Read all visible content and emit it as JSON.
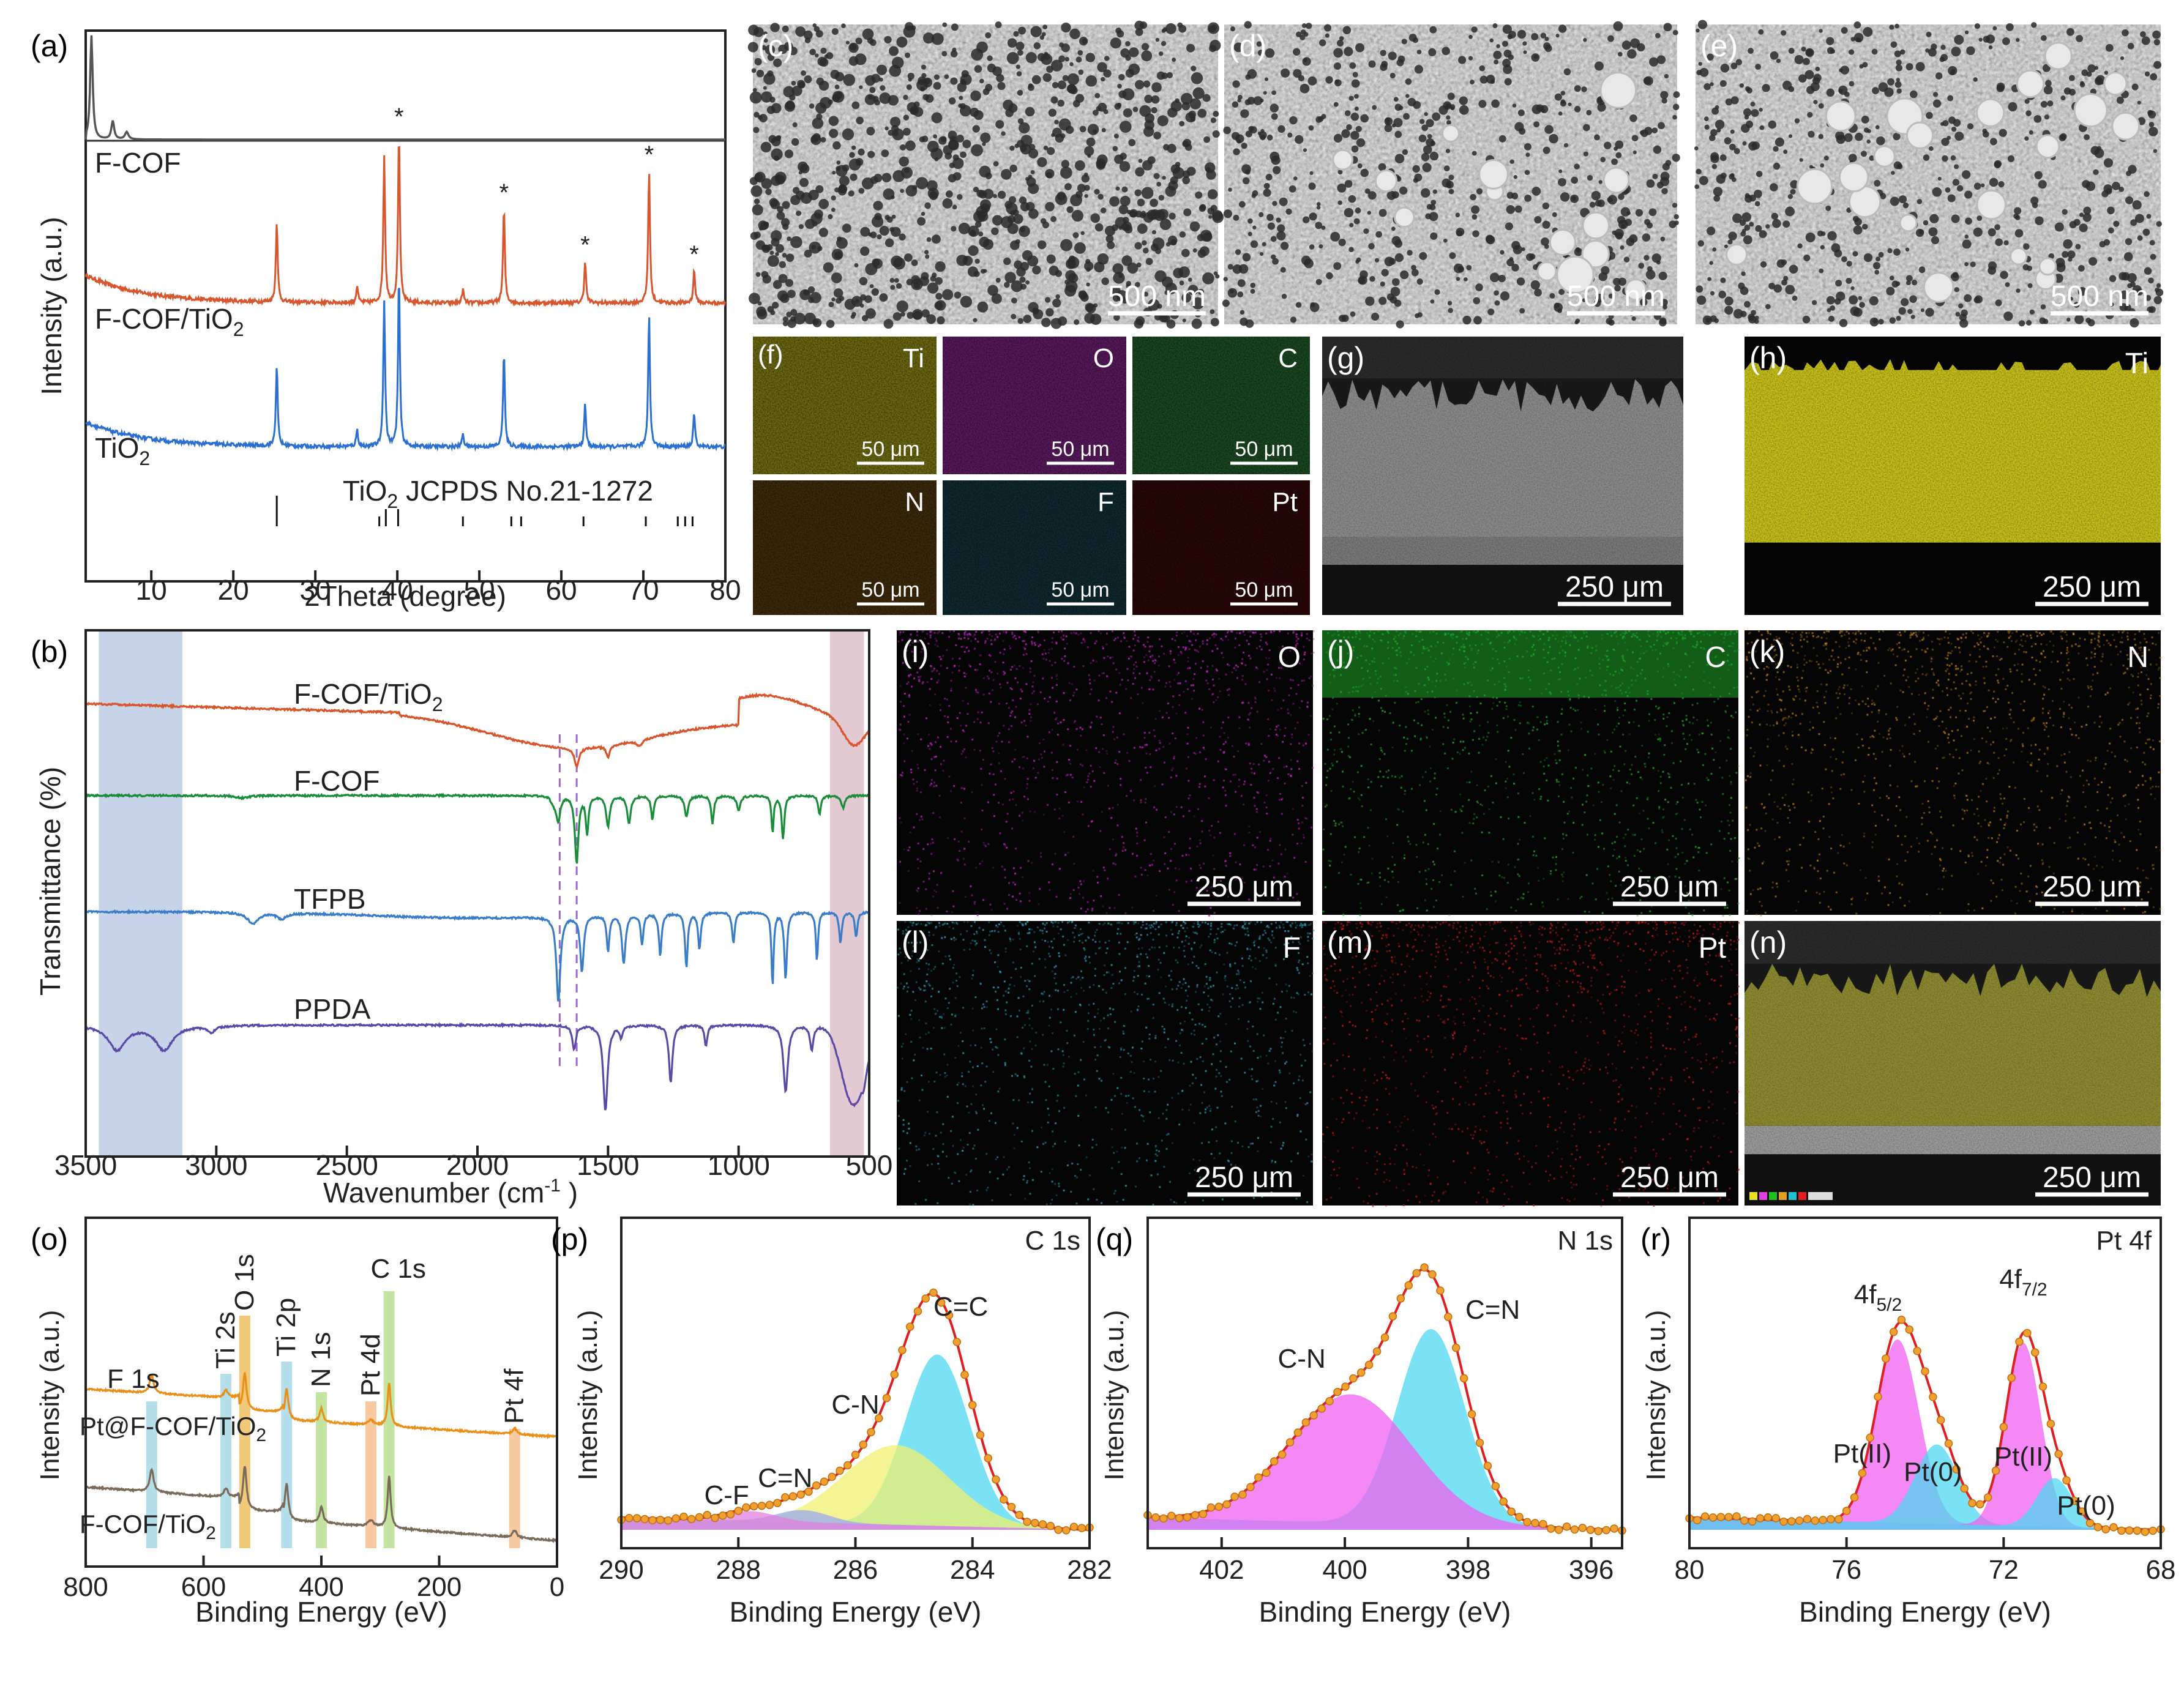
{
  "panel_labels": {
    "a": "(a)",
    "b": "(b)",
    "c": "(c)",
    "d": "(d)",
    "e": "(e)",
    "f": "(f)",
    "g": "(g)",
    "h": "(h)",
    "i": "(i)",
    "j": "(j)",
    "k": "(k)",
    "l": "(l)",
    "m": "(m)",
    "n": "(n)",
    "o": "(o)",
    "p": "(p)",
    "q": "(q)",
    "r": "(r)"
  },
  "micrographs": [
    {
      "panel": "c",
      "type": "SEM top view",
      "scale_bar": "500 nm"
    },
    {
      "panel": "d",
      "type": "SEM top view",
      "scale_bar": "500 nm"
    },
    {
      "panel": "e",
      "type": "SEM top view",
      "scale_bar": "500 nm"
    },
    {
      "panel": "f",
      "element": "Ti",
      "scale_bar": "50 μm",
      "tint": "#6e6a12"
    },
    {
      "panel": "",
      "element": "O",
      "scale_bar": "50 μm",
      "tint": "#5a1a5e"
    },
    {
      "panel": "",
      "element": "C",
      "scale_bar": "50 μm",
      "tint": "#1b4a22"
    },
    {
      "panel": "",
      "element": "N",
      "scale_bar": "50 μm",
      "tint": "#3e2a0a"
    },
    {
      "panel": "",
      "element": "F",
      "scale_bar": "50 μm",
      "tint": "#0e2a30"
    },
    {
      "panel": "",
      "element": "Pt",
      "scale_bar": "50 μm",
      "tint": "#2a0808"
    },
    {
      "panel": "g",
      "type": "SEM cross-section",
      "scale_bar": "250 μm"
    },
    {
      "panel": "h",
      "element": "Ti",
      "scale_bar": "250 μm",
      "tint": "#c9c21c"
    },
    {
      "panel": "i",
      "element": "O",
      "scale_bar": "250 μm",
      "tint": "#c020c0"
    },
    {
      "panel": "j",
      "element": "C",
      "scale_bar": "250 μm",
      "tint": "#1ea82a"
    },
    {
      "panel": "k",
      "element": "N",
      "scale_bar": "250 μm",
      "tint": "#b07810"
    },
    {
      "panel": "l",
      "element": "F",
      "scale_bar": "250 μm",
      "tint": "#2a9ab0"
    },
    {
      "panel": "m",
      "element": "Pt",
      "scale_bar": "250 μm",
      "tint": "#c01818"
    },
    {
      "panel": "n",
      "type": "EDS overlay",
      "scale_bar": "250 μm"
    }
  ],
  "chart_data": [
    {
      "id": "a",
      "type": "line",
      "title": "",
      "xlabel": "2Theta (degree)",
      "ylabel": "Intensity (a.u.)",
      "xlim": [
        2,
        80
      ],
      "xticks": [
        10,
        20,
        30,
        40,
        50,
        60,
        70,
        80
      ],
      "series": [
        {
          "name": "F-COF",
          "color": "#555555",
          "peaks": [
            2.7,
            5.3,
            7.0
          ]
        },
        {
          "name": "F-COF/TiO2",
          "color": "#d8562e",
          "peaks": [
            25.3,
            35.1,
            38.4,
            40.2,
            48.0,
            53.0,
            62.9,
            70.7,
            76.2
          ]
        },
        {
          "name": "TiO2",
          "color": "#2a6fd1",
          "peaks": [
            25.3,
            35.1,
            38.4,
            40.2,
            48.0,
            53.0,
            62.9,
            70.7,
            76.2
          ]
        }
      ],
      "series_labels": {
        "fcof": "F-COF",
        "fcoftio2_main": "F-COF/TiO",
        "fcoftio2_sub": "2",
        "tio2_main": "TiO",
        "tio2_sub": "2"
      },
      "star_marks": [
        40.2,
        53.0,
        62.9,
        70.7,
        76.2
      ],
      "star_symbol": "*",
      "reference": {
        "label_main": "TiO",
        "label_sub": "2",
        "label_rest": " JCPDS No.21-1272",
        "lines": [
          25.3,
          37.8,
          38.6,
          40.1,
          48.0,
          53.9,
          55.1,
          62.7,
          70.3,
          74.2,
          75.1,
          76.0
        ]
      }
    },
    {
      "id": "b",
      "type": "line",
      "xlabel_main": "Wavenumber (cm",
      "xlabel_sup": "-1",
      "xlabel_end": " )",
      "ylabel": "Transmittance (%)",
      "xlim": [
        3500,
        500
      ],
      "xticks": [
        3500,
        3000,
        2500,
        2000,
        1500,
        1000,
        500
      ],
      "shaded_ranges": [
        {
          "range": [
            3450,
            3130
          ],
          "color": "#c6d3e8"
        },
        {
          "range": [
            650,
            520
          ],
          "color": "#e2c9d2"
        }
      ],
      "dashed_lines": [
        1685,
        1620
      ],
      "series": [
        {
          "name": "F-COF/TiO2",
          "label_main": "F-COF/TiO",
          "label_sub": "2",
          "color": "#d8562e"
        },
        {
          "name": "F-COF",
          "label_main": "F-COF",
          "color": "#1a8c3a"
        },
        {
          "name": "TFPB",
          "label_main": "TFPB",
          "color": "#3a7cc8"
        },
        {
          "name": "PPDA",
          "label_main": "PPDA",
          "color": "#5a4aa8"
        }
      ]
    },
    {
      "id": "o",
      "type": "line",
      "xlabel": "Binding Energy (eV)",
      "ylabel": "Intensity (a.u.)",
      "xlim": [
        800,
        0
      ],
      "xticks": [
        800,
        600,
        400,
        200,
        0
      ],
      "series": [
        {
          "name": "Pt@F-COF/TiO2",
          "label": "Pt@F-COF/TiO",
          "label_sub": "2",
          "color": "#e8901a"
        },
        {
          "name": "F-COF/TiO2",
          "label": "F-COF/TiO",
          "label_sub": "2",
          "color": "#7a6a5a"
        }
      ],
      "peak_bands": [
        {
          "label": "F 1s",
          "center": 688,
          "color": "#a8d8e8"
        },
        {
          "label": "Ti 2s",
          "center": 562,
          "color": "#a8d8e8"
        },
        {
          "label": "O 1s",
          "center": 530,
          "color": "#f0c060"
        },
        {
          "label": "Ti 2p",
          "center": 459,
          "color": "#a8d8e8"
        },
        {
          "label": "N 1s",
          "center": 400,
          "color": "#b8e090"
        },
        {
          "label": "Pt 4d",
          "center": 316,
          "color": "#f8c090"
        },
        {
          "label": "C 1s",
          "center": 285,
          "color": "#b8e090"
        },
        {
          "label": "Pt 4f",
          "center": 72,
          "color": "#f8c090"
        }
      ]
    },
    {
      "id": "p",
      "type": "line",
      "title": "C 1s",
      "xlabel": "Binding Energy (eV)",
      "ylabel": "Intensity (a.u.)",
      "xlim": [
        290,
        282
      ],
      "xticks": [
        290,
        288,
        286,
        284,
        282
      ],
      "components": [
        {
          "label": "C=C",
          "center": 284.6,
          "color": "#4dd8f0"
        },
        {
          "label": "C-N",
          "center": 285.3,
          "color": "#f0f070"
        },
        {
          "label": "C=N",
          "center": 286.9,
          "color": "#9aa8f0"
        },
        {
          "label": "C-F",
          "center": 287.8,
          "color": "#e080e0"
        }
      ]
    },
    {
      "id": "q",
      "type": "line",
      "title": "N 1s",
      "xlabel": "Binding Energy (eV)",
      "ylabel": "Intensity (a.u.)",
      "xlim": [
        403.2,
        395.5
      ],
      "xticks": [
        402,
        400,
        398,
        396
      ],
      "components": [
        {
          "label": "C=N",
          "center": 398.6,
          "color": "#4dd8f0"
        },
        {
          "label": "C-N",
          "center": 399.9,
          "color": "#f060f0"
        }
      ]
    },
    {
      "id": "r",
      "type": "line",
      "title": "Pt 4f",
      "xlabel": "Binding Energy (eV)",
      "ylabel": "Intensity (a.u.)",
      "xlim": [
        80,
        68
      ],
      "xticks": [
        80,
        76,
        72,
        68
      ],
      "peak_labels": {
        "f52_main": "4f",
        "f52_sub": "5/2",
        "f72_main": "4f",
        "f72_sub": "7/2"
      },
      "components": [
        {
          "label": "Pt(II)",
          "center": 74.7,
          "color": "#f060f0"
        },
        {
          "label": "Pt(0)",
          "center": 73.7,
          "color": "#4dd8f0"
        },
        {
          "label": "Pt(II)",
          "center": 71.5,
          "color": "#f060f0"
        },
        {
          "label": "Pt(0)",
          "center": 70.7,
          "color": "#4dd8f0"
        }
      ]
    }
  ]
}
